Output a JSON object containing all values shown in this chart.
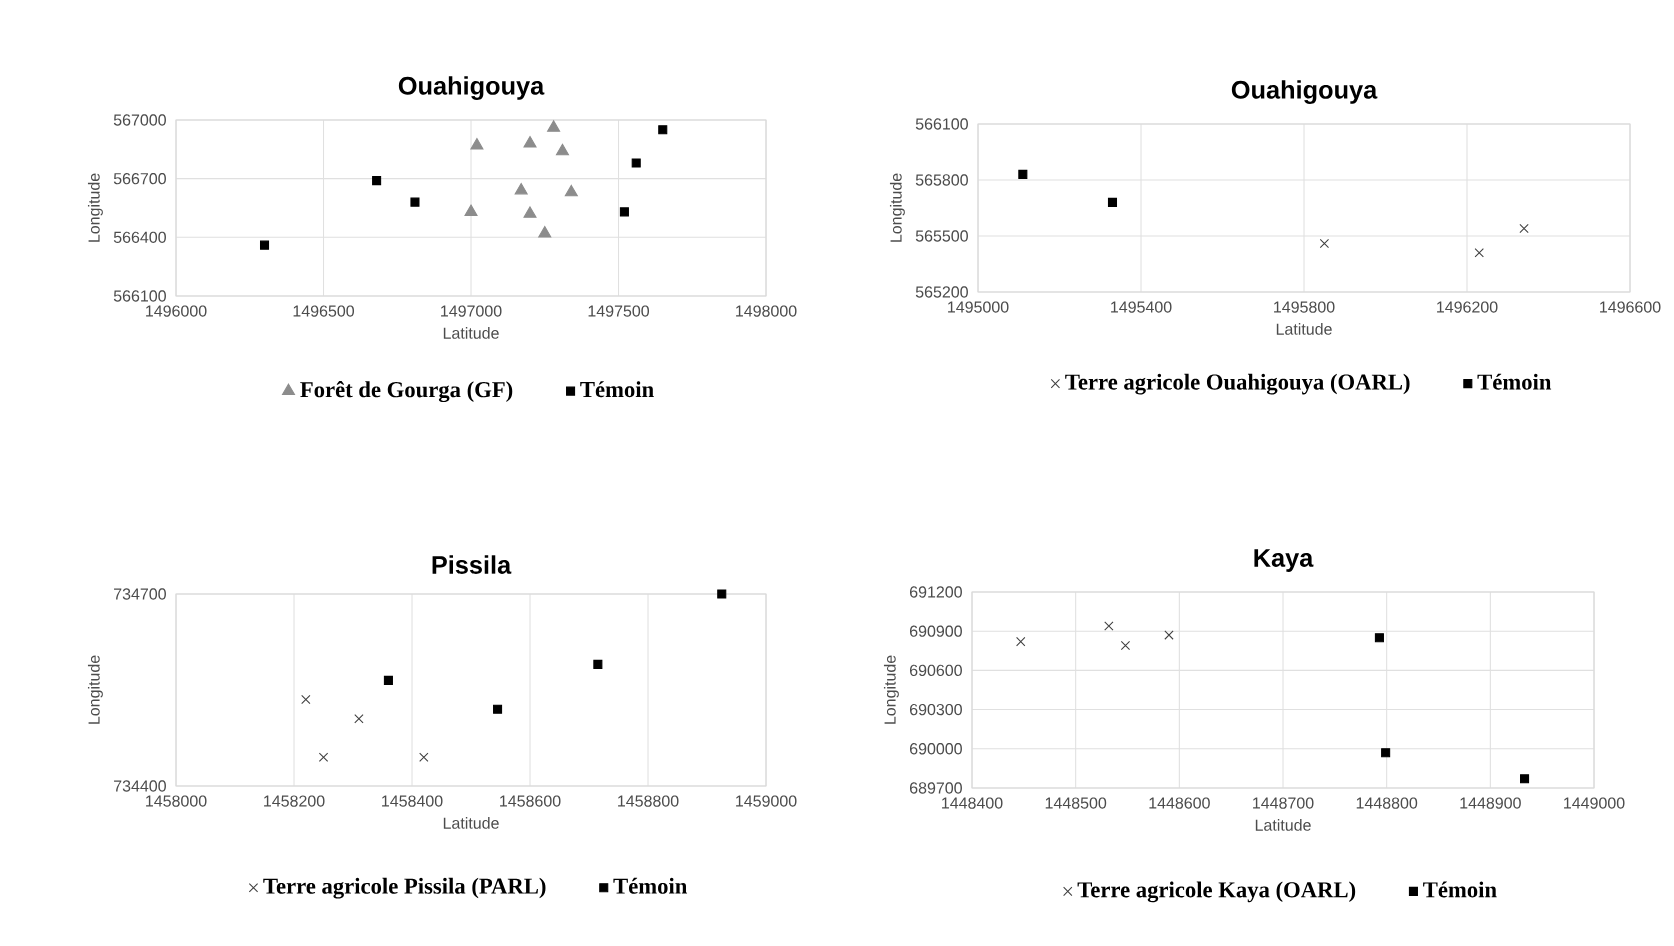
{
  "chart_data": [
    {
      "type": "scatter",
      "title": "Ouahigouya",
      "xlabel": "Latitude",
      "ylabel": "Longitude",
      "xlim": [
        1496000,
        1498000
      ],
      "xticks": [
        1496000,
        1496500,
        1497000,
        1497500,
        1498000
      ],
      "ylim": [
        566100,
        567000
      ],
      "yticks": [
        566100,
        566400,
        566700,
        567000
      ],
      "grid": true,
      "legend": "bottom",
      "series": [
        {
          "name": "Forêt de Gourga (GF)",
          "color": "#8c8c8c",
          "marker": "triangle",
          "x": [
            1497020,
            1497200,
            1497280,
            1497310,
            1497170,
            1497340,
            1497000,
            1497200,
            1497250
          ],
          "values": [
            566870,
            566880,
            566960,
            566840,
            566640,
            566630,
            566530,
            566520,
            566420
          ]
        },
        {
          "name": "Témoin",
          "color": "#000000",
          "marker": "square",
          "x": [
            1496300,
            1496680,
            1496810,
            1497520,
            1497560,
            1497650
          ],
          "values": [
            566360,
            566690,
            566580,
            566530,
            566780,
            566950
          ]
        }
      ]
    },
    {
      "type": "scatter",
      "title": "Ouahigouya",
      "xlabel": "Latitude",
      "ylabel": "Longitude",
      "xlim": [
        1495000,
        1496600
      ],
      "xticks": [
        1495000,
        1495400,
        1495800,
        1496200,
        1496600
      ],
      "ylim": [
        565200,
        566100
      ],
      "yticks": [
        565200,
        565500,
        565800,
        566100
      ],
      "grid": true,
      "legend": "bottom",
      "series": [
        {
          "name": "Terre agricole Ouahigouya (OARL)",
          "color": "#404040",
          "marker": "cross",
          "x": [
            1495850,
            1496230,
            1496340
          ],
          "values": [
            565460,
            565410,
            565540
          ]
        },
        {
          "name": "Témoin",
          "color": "#000000",
          "marker": "square",
          "x": [
            1495110,
            1495330
          ],
          "values": [
            565830,
            565680
          ]
        }
      ]
    },
    {
      "type": "scatter",
      "title": "Pissila",
      "xlabel": "Latitude",
      "ylabel": "Longitude",
      "xlim": [
        1458000,
        1459000
      ],
      "xticks": [
        1458000,
        1458200,
        1458400,
        1458600,
        1458800,
        1459000
      ],
      "ylim": [
        734400,
        734700
      ],
      "yticks": [
        734400,
        734700
      ],
      "grid": true,
      "legend": "bottom",
      "series": [
        {
          "name": "Terre agricole Pissila (PARL)",
          "color": "#404040",
          "marker": "cross",
          "x": [
            1458220,
            1458250,
            1458310,
            1458420
          ],
          "values": [
            734535,
            734445,
            734505,
            734445
          ]
        },
        {
          "name": "Témoin",
          "color": "#000000",
          "marker": "square",
          "x": [
            1458360,
            1458545,
            1458715,
            1458925
          ],
          "values": [
            734565,
            734520,
            734590,
            734700
          ]
        }
      ]
    },
    {
      "type": "scatter",
      "title": "Kaya",
      "xlabel": "Latitude",
      "ylabel": "Longitude",
      "xlim": [
        1448400,
        1449000
      ],
      "xticks": [
        1448400,
        1448500,
        1448600,
        1448700,
        1448800,
        1448900,
        1449000
      ],
      "ylim": [
        689700,
        691200
      ],
      "yticks": [
        689700,
        690000,
        690300,
        690600,
        690900,
        691200
      ],
      "grid": true,
      "legend": "bottom",
      "series": [
        {
          "name": "Terre agricole Kaya (OARL)",
          "color": "#404040",
          "marker": "cross",
          "x": [
            1448447,
            1448532,
            1448548,
            1448590
          ],
          "values": [
            690820,
            690940,
            690790,
            690870
          ]
        },
        {
          "name": "Témoin",
          "color": "#000000",
          "marker": "square",
          "x": [
            1448793,
            1448799,
            1448933
          ],
          "values": [
            690850,
            689970,
            689770
          ]
        }
      ]
    }
  ]
}
